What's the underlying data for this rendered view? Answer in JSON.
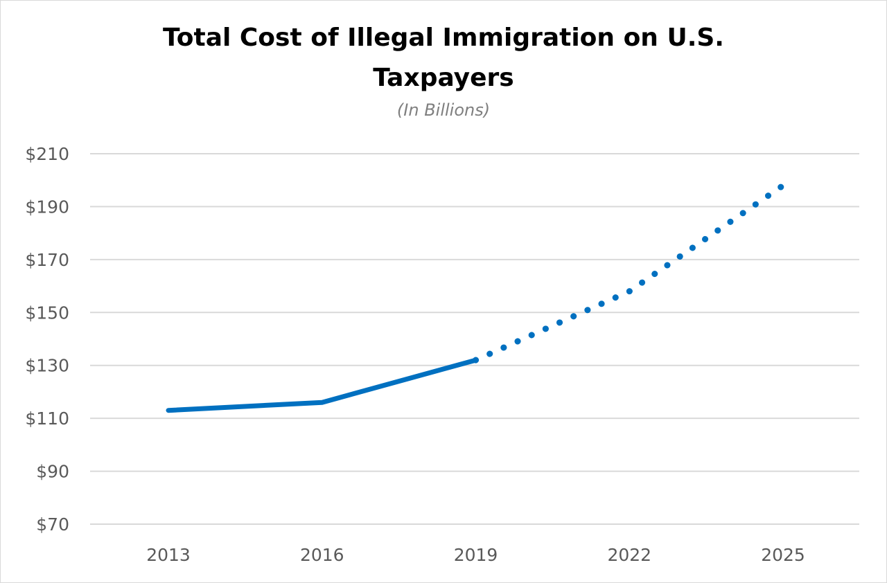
{
  "chart_data": {
    "type": "line",
    "title_line1": "Total Cost of Illegal Immigration on U.S.",
    "title_line2": "Taxpayers",
    "subtitle": "(In Billions)",
    "xlabel": "",
    "ylabel": "",
    "x_ticks": [
      "2013",
      "2016",
      "2019",
      "2022",
      "2025"
    ],
    "y_ticks": [
      "$70",
      "$90",
      "$110",
      "$130",
      "$150",
      "$170",
      "$190",
      "$210"
    ],
    "ylim": [
      70,
      210
    ],
    "grid": true,
    "colors": {
      "line": "#0070c0",
      "grid": "#d9d9d9",
      "tick_text": "#595959",
      "subtitle": "#7f7f7f"
    },
    "series": [
      {
        "style": "solid",
        "x": [
          2013,
          2016,
          2019
        ],
        "y": [
          113,
          116,
          132
        ]
      },
      {
        "style": "dotted",
        "x": [
          2019,
          2022,
          2025
        ],
        "y": [
          132,
          158,
          198
        ]
      }
    ]
  }
}
